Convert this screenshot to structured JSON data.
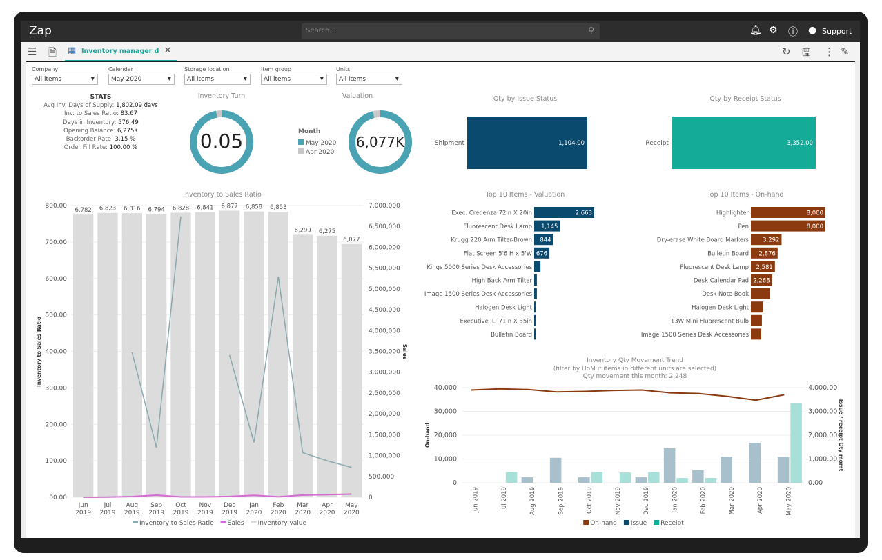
{
  "app": {
    "logo": "Zap",
    "search_placeholder": "Search...",
    "support_label": "Support"
  },
  "tab": {
    "label": "Inventory manager d"
  },
  "filters": [
    {
      "label": "Company",
      "value": "All items"
    },
    {
      "label": "Calendar",
      "value": "May 2020"
    },
    {
      "label": "Storage location",
      "value": "All items"
    },
    {
      "label": "Item group",
      "value": "All items"
    },
    {
      "label": "Units",
      "value": "All items"
    }
  ],
  "stats": {
    "title": "STATS",
    "rows": [
      {
        "label": "Avg Inv. Days of Supply:",
        "value": "1,802.09 days"
      },
      {
        "label": "Inv. to Sales Ratio:",
        "value": "83.67"
      },
      {
        "label": "Days in Inventory:",
        "value": "576.49"
      },
      {
        "label": "Opening Balance:",
        "value": "6,275K"
      },
      {
        "label": "Backorder Rate:",
        "value": "3.15 %"
      },
      {
        "label": "Order Fill Rate:",
        "value": "100.00 %"
      }
    ]
  },
  "colors": {
    "teal": "#4aa3b3",
    "grey": "#c8c8c8",
    "navy": "#0b4a6f",
    "green": "#15ab99",
    "brown": "#8b3a0f",
    "ratio": "#8aa9ad",
    "sales": "#d36bd0",
    "invbar": "#dcdcdc",
    "issuebar": "#a8bfcc",
    "receiptbar": "#a6e0d9"
  },
  "kpis": {
    "inventory_turn": {
      "title": "Inventory Turn",
      "value": "0.05",
      "fraction_may": 0.97
    },
    "valuation": {
      "title": "Valuation",
      "value": "6,077K",
      "fraction_may": 0.96
    },
    "legend_title": "Month",
    "legend": [
      "May 2020",
      "Apr 2020"
    ]
  },
  "chart_data": [
    {
      "type": "bar",
      "title": "Qty by Issue Status",
      "categories": [
        "Shipment"
      ],
      "values": [
        1104.0
      ],
      "labels": [
        "1,104.00"
      ]
    },
    {
      "type": "bar",
      "title": "Qty by Receipt Status",
      "categories": [
        "Receipt"
      ],
      "values": [
        3352.0
      ],
      "labels": [
        "3,352.00"
      ]
    },
    {
      "type": "bar",
      "title": "Top 10 Items - Valuation",
      "categories": [
        "Exec. Credenza 72in X 20in",
        "Fluorescent Desk Lamp",
        "Krugg 220 Arm Tilter-Brown",
        "Flat Screen 5'6 H x 5'W",
        "Kings 5000 Series Desk Accessories",
        "High Back Arm Tilter",
        "Image 1500 Series Desk Accessories",
        "Halogen Desk Light",
        "Executive 'L' 71in X 35in",
        "Bulletin Board"
      ],
      "values": [
        2663,
        1145,
        844,
        676,
        280,
        120,
        120,
        60,
        60,
        60
      ],
      "labels": [
        "2,663",
        "1,145",
        "844",
        "676",
        "",
        "",
        "",
        "",
        "",
        ""
      ]
    },
    {
      "type": "bar",
      "title": "Top 10 Items - On-hand",
      "categories": [
        "Highlighter",
        "Pen",
        "Dry-erase White Board Markers",
        "Bulletin Board",
        "Fluorescent Desk Lamp",
        "Desk Calendar Pad",
        "Desk Note Book",
        "Halogen Desk Light",
        "13W Mini Fluorescent Bulb",
        "Image 1500 Series Desk Accessories"
      ],
      "values": [
        8000,
        8000,
        3292,
        2876,
        2581,
        2268,
        2070,
        1330,
        1180,
        1110
      ],
      "labels": [
        "8,000",
        "8,000",
        "3,292",
        "2,876",
        "2,581",
        "2,268",
        "",
        "",
        "",
        ""
      ]
    },
    {
      "type": "bar",
      "title": "Inventory to Sales Ratio",
      "ylabel": "Inventory to Sales Ratio",
      "y2label": "Sales",
      "categories": [
        "Jun 2019",
        "Jul 2019",
        "Aug 2019",
        "Sep 2019",
        "Oct 2019",
        "Nov 2019",
        "Dec 2019",
        "Jan 2020",
        "Feb 2020",
        "Mar 2020",
        "Apr 2020",
        "May 2020"
      ],
      "ylim": [
        0,
        800
      ],
      "yticks": [
        "00.00",
        "100.00",
        "200.00",
        "300.00",
        "400.00",
        "500.00",
        "600.00",
        "700.00",
        "800.00"
      ],
      "y2lim": [
        0,
        7000000
      ],
      "y2ticks": [
        "0",
        "500,000",
        "1,000,000",
        "1,500,000",
        "2,000,000",
        "2,500,000",
        "3,000,000",
        "3,500,000",
        "4,000,000",
        "4,500,000",
        "5,000,000",
        "5,500,000",
        "6,000,000",
        "6,500,000",
        "7,000,000"
      ],
      "series": [
        {
          "name": "Inventory value",
          "type": "bar",
          "axis": "right",
          "values": [
            6782000,
            6823000,
            6816000,
            6794000,
            6828000,
            6841000,
            6877000,
            6858000,
            6853000,
            6299000,
            6275000,
            6077000
          ],
          "labels": [
            "6,782",
            "6,823",
            "6,816",
            "6,794",
            "6,828",
            "6,841",
            "6,877",
            "6,858",
            "6,853",
            "6,299",
            "6,275",
            "6,077"
          ]
        },
        {
          "name": "Inventory to Sales Ratio",
          "type": "line",
          "axis": "left",
          "values": [
            null,
            null,
            397,
            136,
            770,
            null,
            390,
            150,
            605,
            122,
            100,
            82
          ]
        },
        {
          "name": "Sales",
          "type": "line",
          "axis": "right",
          "values": [
            0,
            5000,
            17000,
            50000,
            9000,
            9000,
            18000,
            46000,
            11000,
            52000,
            63000,
            74000
          ]
        }
      ],
      "grid": true,
      "legend": "bottom"
    },
    {
      "type": "bar",
      "title": "Inventory Qty Movement Trend",
      "subtitle": "(filter by UoM if items in different units are selected)",
      "subtitle2": "Qty movement this month: 2,248",
      "ylabel": "On-hand",
      "y2label": "Issue / receipt Qty momt",
      "categories": [
        "Jun 2019",
        "Jul 2019",
        "Aug 2019",
        "Sep 2019",
        "Oct 2019",
        "Nov 2019",
        "Dec 2019",
        "Jan 2020",
        "Feb 2020",
        "Mar 2020",
        "Apr 2020",
        "May 2020"
      ],
      "ylim": [
        0,
        40000
      ],
      "yticks": [
        "0",
        "10,000",
        "20,000",
        "30,000",
        "40,000"
      ],
      "y2lim": [
        0,
        4000
      ],
      "y2ticks": [
        "0.00",
        "1,000.00",
        "2,000.00",
        "3,000.00",
        "4,000.00"
      ],
      "series": [
        {
          "name": "On-hand",
          "type": "line",
          "axis": "left",
          "values": [
            39000,
            39500,
            39200,
            38200,
            38400,
            38800,
            39000,
            37800,
            37500,
            36300,
            34700,
            37000
          ]
        },
        {
          "name": "Issue",
          "type": "bar",
          "axis": "right",
          "values": [
            0,
            0,
            230,
            1050,
            230,
            0,
            230,
            1450,
            530,
            1100,
            1680,
            1090
          ]
        },
        {
          "name": "Receipt",
          "type": "bar",
          "axis": "right",
          "values": [
            0,
            450,
            0,
            0,
            450,
            430,
            450,
            200,
            200,
            0,
            0,
            3352
          ]
        }
      ],
      "grid": true,
      "legend": "bottom"
    }
  ]
}
